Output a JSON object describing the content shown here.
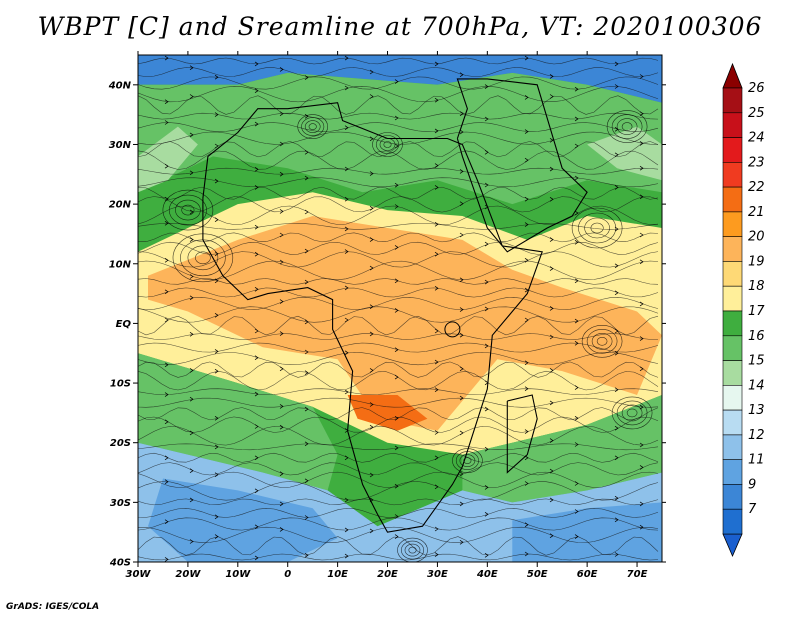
{
  "title": "WBPT [C] and Sreamline at 700hPa, VT: 2020100306",
  "credit": "GrADS: IGES/COLA",
  "map": {
    "lon_range": [
      -30,
      75
    ],
    "lat_range": [
      -40,
      45
    ],
    "lon_ticks": [
      {
        "value": -30,
        "label": "30W"
      },
      {
        "value": -20,
        "label": "20W"
      },
      {
        "value": -10,
        "label": "10W"
      },
      {
        "value": 0,
        "label": "0"
      },
      {
        "value": 10,
        "label": "10E"
      },
      {
        "value": 20,
        "label": "20E"
      },
      {
        "value": 30,
        "label": "30E"
      },
      {
        "value": 40,
        "label": "40E"
      },
      {
        "value": 50,
        "label": "50E"
      },
      {
        "value": 60,
        "label": "60E"
      },
      {
        "value": 70,
        "label": "70E"
      }
    ],
    "lat_ticks": [
      {
        "value": 40,
        "label": "40N"
      },
      {
        "value": 30,
        "label": "30N"
      },
      {
        "value": 20,
        "label": "20N"
      },
      {
        "value": 10,
        "label": "10N"
      },
      {
        "value": 0,
        "label": "EQ"
      },
      {
        "value": -10,
        "label": "10S"
      },
      {
        "value": -20,
        "label": "20S"
      },
      {
        "value": -30,
        "label": "30S"
      },
      {
        "value": -40,
        "label": "40S"
      }
    ]
  },
  "colorbar": {
    "levels": [
      {
        "label": "26",
        "color": "#a50f15"
      },
      {
        "label": "25",
        "color": "#c8101a"
      },
      {
        "label": "24",
        "color": "#e31a1c"
      },
      {
        "label": "23",
        "color": "#f03b20"
      },
      {
        "label": "22",
        "color": "#f46d14"
      },
      {
        "label": "21",
        "color": "#fd9b1f"
      },
      {
        "label": "20",
        "color": "#fdb45a"
      },
      {
        "label": "19",
        "color": "#fed976"
      },
      {
        "label": "18",
        "color": "#ffef9a"
      },
      {
        "label": "17",
        "color": "#3fae3f"
      },
      {
        "label": "16",
        "color": "#66c266"
      },
      {
        "label": "15",
        "color": "#a8dca0"
      },
      {
        "label": "14",
        "color": "#e6f7ef"
      },
      {
        "label": "13",
        "color": "#b8dcf2"
      },
      {
        "label": "12",
        "color": "#8ec1ea"
      },
      {
        "label": "11",
        "color": "#5fa3e1"
      },
      {
        "label": "9",
        "color": "#3c86d6"
      },
      {
        "label": "7",
        "color": "#1f6fd0"
      }
    ],
    "top_cap_color": "#8b0000",
    "bottom_cap_color": "#1a5fcf"
  },
  "field_regions": [
    {
      "color": "#3c86d6",
      "poly": [
        [
          -30,
          45
        ],
        [
          75,
          45
        ],
        [
          75,
          37
        ],
        [
          60,
          40
        ],
        [
          45,
          42
        ],
        [
          30,
          40
        ],
        [
          15,
          41
        ],
        [
          0,
          42
        ],
        [
          -10,
          40
        ],
        [
          -30,
          40
        ]
      ]
    },
    {
      "color": "#66c266",
      "poly": [
        [
          -30,
          40
        ],
        [
          -10,
          40
        ],
        [
          0,
          42
        ],
        [
          15,
          41
        ],
        [
          30,
          40
        ],
        [
          45,
          42
        ],
        [
          60,
          40
        ],
        [
          75,
          37
        ],
        [
          75,
          22
        ],
        [
          60,
          24
        ],
        [
          45,
          20
        ],
        [
          30,
          24
        ],
        [
          15,
          22
        ],
        [
          0,
          26
        ],
        [
          -15,
          28
        ],
        [
          -30,
          22
        ]
      ]
    },
    {
      "color": "#ffef9a",
      "poly": [
        [
          -30,
          12
        ],
        [
          -10,
          20
        ],
        [
          5,
          22
        ],
        [
          20,
          19
        ],
        [
          35,
          18
        ],
        [
          48,
          14
        ],
        [
          60,
          18
        ],
        [
          75,
          16
        ],
        [
          75,
          -12
        ],
        [
          60,
          -17
        ],
        [
          45,
          -20
        ],
        [
          35,
          -22
        ],
        [
          20,
          -20
        ],
        [
          5,
          -14
        ],
        [
          -10,
          -10
        ],
        [
          -30,
          -5
        ]
      ]
    },
    {
      "color": "#fdb45a",
      "poly": [
        [
          -28,
          8
        ],
        [
          -10,
          14
        ],
        [
          5,
          18
        ],
        [
          20,
          16
        ],
        [
          35,
          14
        ],
        [
          45,
          9
        ],
        [
          55,
          6
        ],
        [
          70,
          2
        ],
        [
          75,
          -2
        ],
        [
          70,
          -12
        ],
        [
          55,
          -8
        ],
        [
          42,
          -6
        ],
        [
          30,
          -18
        ],
        [
          18,
          -16
        ],
        [
          10,
          -6
        ],
        [
          -5,
          -4
        ],
        [
          -20,
          2
        ],
        [
          -28,
          4
        ]
      ]
    },
    {
      "color": "#f46d14",
      "poly": [
        [
          12,
          -12
        ],
        [
          22,
          -12
        ],
        [
          28,
          -16
        ],
        [
          22,
          -18
        ],
        [
          14,
          -16
        ]
      ]
    },
    {
      "color": "#66c266",
      "poly": [
        [
          -30,
          -5
        ],
        [
          -10,
          -10
        ],
        [
          5,
          -14
        ],
        [
          10,
          -22
        ],
        [
          8,
          -28
        ],
        [
          -5,
          -25
        ],
        [
          -20,
          -22
        ],
        [
          -30,
          -20
        ]
      ]
    },
    {
      "color": "#66c266",
      "poly": [
        [
          35,
          -22
        ],
        [
          45,
          -20
        ],
        [
          60,
          -17
        ],
        [
          75,
          -12
        ],
        [
          75,
          -25
        ],
        [
          60,
          -28
        ],
        [
          45,
          -30
        ],
        [
          35,
          -28
        ]
      ]
    },
    {
      "color": "#8ec1ea",
      "poly": [
        [
          -30,
          -20
        ],
        [
          -20,
          -22
        ],
        [
          -5,
          -25
        ],
        [
          8,
          -28
        ],
        [
          18,
          -34
        ],
        [
          35,
          -28
        ],
        [
          45,
          -30
        ],
        [
          60,
          -28
        ],
        [
          75,
          -25
        ],
        [
          75,
          -40
        ],
        [
          -30,
          -40
        ]
      ]
    },
    {
      "color": "#5fa3e1",
      "poly": [
        [
          -25,
          -26
        ],
        [
          -10,
          -28
        ],
        [
          5,
          -31
        ],
        [
          10,
          -36
        ],
        [
          0,
          -40
        ],
        [
          -20,
          -40
        ],
        [
          -28,
          -34
        ]
      ]
    },
    {
      "color": "#5fa3e1",
      "poly": [
        [
          45,
          -33
        ],
        [
          60,
          -31
        ],
        [
          75,
          -30
        ],
        [
          75,
          -40
        ],
        [
          45,
          -40
        ]
      ]
    },
    {
      "color": "#a8dca0",
      "poly": [
        [
          -30,
          28
        ],
        [
          -22,
          33
        ],
        [
          -18,
          30
        ],
        [
          -24,
          24
        ],
        [
          -30,
          22
        ]
      ]
    },
    {
      "color": "#a8dca0",
      "poly": [
        [
          60,
          30
        ],
        [
          70,
          33
        ],
        [
          75,
          30
        ],
        [
          75,
          24
        ],
        [
          66,
          26
        ]
      ]
    }
  ],
  "coastlines": [
    [
      [
        -17,
        21
      ],
      [
        -16,
        28
      ],
      [
        -10,
        32
      ],
      [
        -6,
        36
      ],
      [
        0,
        36
      ],
      [
        10,
        37
      ],
      [
        11,
        34
      ],
      [
        20,
        31
      ],
      [
        32,
        31
      ],
      [
        35,
        30
      ],
      [
        38,
        24
      ],
      [
        43,
        13
      ],
      [
        51,
        12
      ],
      [
        48,
        5
      ],
      [
        41,
        -2
      ],
      [
        40,
        -11
      ],
      [
        35,
        -24
      ],
      [
        33,
        -27
      ],
      [
        27,
        -34
      ],
      [
        20,
        -35
      ],
      [
        18,
        -32
      ],
      [
        15,
        -27
      ],
      [
        12,
        -18
      ],
      [
        13,
        -8
      ],
      [
        9,
        -1
      ],
      [
        9,
        4
      ],
      [
        4,
        6
      ],
      [
        -4,
        5
      ],
      [
        -8,
        4
      ],
      [
        -13,
        8
      ],
      [
        -17,
        14
      ],
      [
        -17,
        21
      ]
    ],
    [
      [
        34,
        31
      ],
      [
        36,
        36
      ],
      [
        34,
        41
      ],
      [
        40,
        41
      ],
      [
        50,
        40
      ],
      [
        55,
        26
      ],
      [
        60,
        22
      ],
      [
        57,
        18
      ],
      [
        52,
        16
      ],
      [
        44,
        12
      ],
      [
        40,
        16
      ],
      [
        35,
        28
      ],
      [
        34,
        31
      ]
    ],
    [
      [
        44,
        -13
      ],
      [
        49,
        -12
      ],
      [
        50,
        -16
      ],
      [
        48,
        -22
      ],
      [
        44,
        -25
      ],
      [
        44,
        -20
      ],
      [
        44,
        -13
      ]
    ]
  ],
  "lakes": [
    {
      "lon": 33,
      "lat": -1,
      "r": 1.5
    }
  ],
  "vortices": [
    {
      "lon": -20,
      "lat": 19,
      "r": 5
    },
    {
      "lon": -17,
      "lat": 11,
      "r": 6
    },
    {
      "lon": 62,
      "lat": 16,
      "r": 5
    },
    {
      "lon": 63,
      "lat": -3,
      "r": 4
    },
    {
      "lon": 69,
      "lat": -15,
      "r": 4
    },
    {
      "lon": 36,
      "lat": -23,
      "r": 3
    },
    {
      "lon": 25,
      "lat": -38,
      "r": 3
    },
    {
      "lon": 20,
      "lat": 30,
      "r": 3
    },
    {
      "lon": 68,
      "lat": 33,
      "r": 4
    },
    {
      "lon": 5,
      "lat": 33,
      "r": 3
    }
  ]
}
